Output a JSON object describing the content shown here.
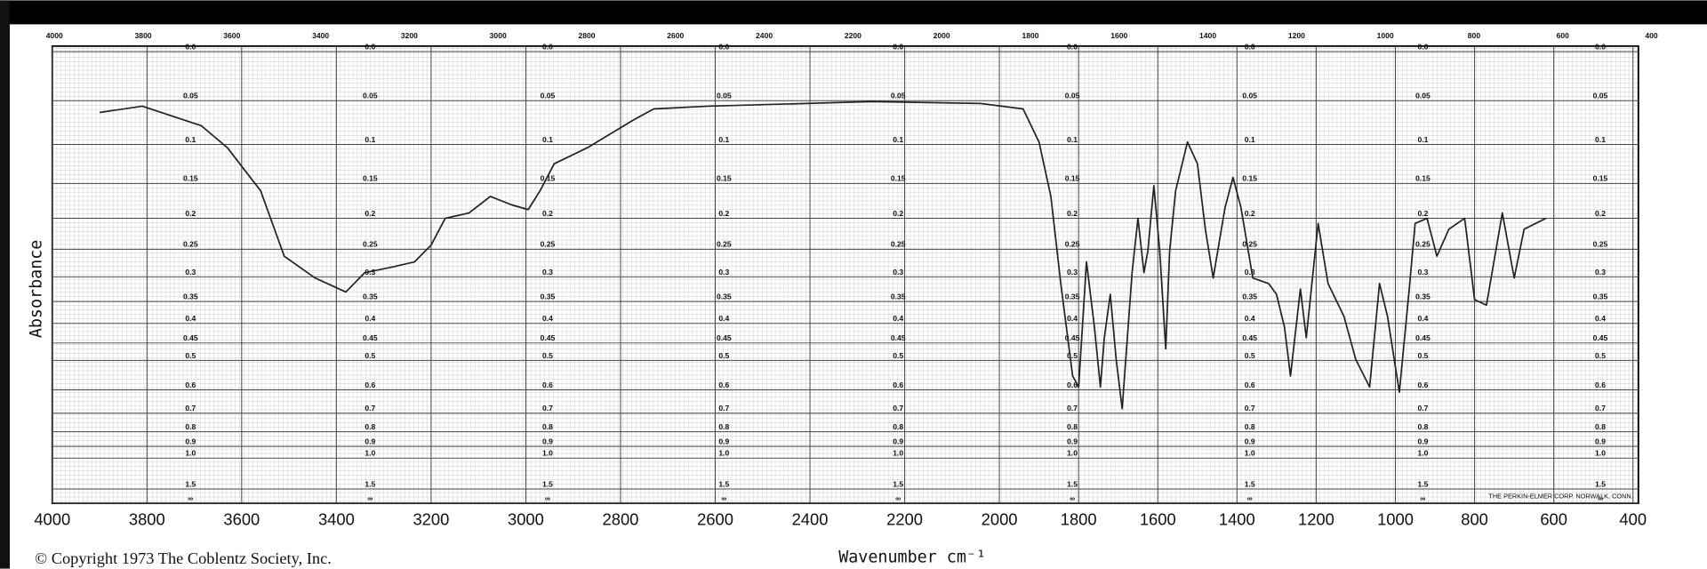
{
  "chart_data": {
    "type": "line",
    "ylabel": "Absorbance",
    "xlabel": "Wavenumber cm⁻¹",
    "copyright": "© Copyright 1973  The Coblentz Society, Inc.",
    "maker": "THE PERKIN-ELMER CORP. NORWALK, CONN.",
    "color": "#222222",
    "yscale": "transmittance",
    "grid": true,
    "xlim": [
      4000,
      400
    ],
    "xticks": [
      4000,
      3800,
      3600,
      3400,
      3200,
      3000,
      2800,
      2600,
      2400,
      2200,
      2000,
      1800,
      1600,
      1400,
      1200,
      1000,
      800,
      600,
      400
    ],
    "ylim": [
      0,
      null
    ],
    "yticks": [
      {
        "value": 0,
        "label": "0.0"
      },
      0.05,
      0.1,
      0.15,
      0.2,
      0.25,
      0.3,
      0.35,
      0.4,
      0.45,
      0.5,
      0.6,
      0.7,
      0.8,
      0.9,
      {
        "value": 1,
        "label": "1.0"
      },
      1.5,
      {
        "value": null,
        "label": "∞"
      }
    ],
    "x": [
      3900,
      3810,
      3685,
      3630,
      3560,
      3510,
      3445,
      3380,
      3340,
      3285,
      3235,
      3200,
      3170,
      3120,
      3075,
      3030,
      2995,
      2970,
      2940,
      2870,
      2775,
      2730,
      2615,
      2270,
      2040,
      1940,
      1900,
      1870,
      1845,
      1815,
      1800,
      1780,
      1760,
      1745,
      1735,
      1720,
      1705,
      1690,
      1665,
      1650,
      1635,
      1625,
      1610,
      1595,
      1580,
      1570,
      1555,
      1525,
      1500,
      1480,
      1460,
      1430,
      1410,
      1390,
      1360,
      1320,
      1300,
      1280,
      1265,
      1240,
      1225,
      1195,
      1170,
      1130,
      1100,
      1065,
      1040,
      1020,
      990,
      965,
      950,
      920,
      895,
      865,
      825,
      800,
      770,
      730,
      700,
      675,
      620
    ],
    "values": [
      0.063,
      0.056,
      0.078,
      0.104,
      0.16,
      0.262,
      0.302,
      0.33,
      0.292,
      0.282,
      0.272,
      0.243,
      0.2,
      0.192,
      0.168,
      0.18,
      0.187,
      0.16,
      0.124,
      0.104,
      0.072,
      0.059,
      0.056,
      0.051,
      0.053,
      0.059,
      0.097,
      0.168,
      0.313,
      0.55,
      0.589,
      0.272,
      0.409,
      0.589,
      0.436,
      0.335,
      0.497,
      0.679,
      0.292,
      0.2,
      0.292,
      0.253,
      0.153,
      0.253,
      0.466,
      0.253,
      0.16,
      0.097,
      0.124,
      0.217,
      0.302,
      0.184,
      0.142,
      0.184,
      0.302,
      0.313,
      0.335,
      0.409,
      0.55,
      0.324,
      0.436,
      0.208,
      0.313,
      0.383,
      0.497,
      0.589,
      0.313,
      0.383,
      0.609,
      0.324,
      0.208,
      0.2,
      0.262,
      0.217,
      0.2,
      0.346,
      0.358,
      0.192,
      0.302,
      0.217,
      0.2
    ]
  }
}
